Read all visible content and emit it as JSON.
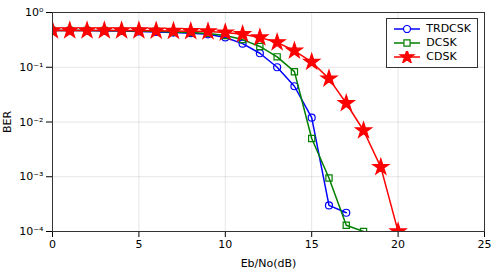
{
  "chart_data": {
    "type": "line",
    "xlabel": "Eb/No(dB)",
    "ylabel": "BER",
    "xlim": [
      0,
      25
    ],
    "xticks": [
      0,
      5,
      10,
      15,
      20,
      25
    ],
    "ylim": [
      0.0001,
      1
    ],
    "yticks": [
      {
        "value": 0.0001,
        "label": "10⁻⁴"
      },
      {
        "value": 0.001,
        "label": "10⁻³"
      },
      {
        "value": 0.01,
        "label": "10⁻²"
      },
      {
        "value": 0.1,
        "label": "10⁻¹"
      },
      {
        "value": 1,
        "label": "10⁰"
      }
    ],
    "log": "y",
    "grid": true,
    "legend": "upper right",
    "series": [
      {
        "name": "TRDCSK",
        "color": "#0000FF",
        "marker": "circle",
        "x": [
          0,
          1,
          2,
          3,
          4,
          5,
          6,
          7,
          8,
          9,
          10,
          11,
          12,
          13,
          14,
          15,
          16,
          17
        ],
        "values": [
          0.47,
          0.47,
          0.47,
          0.46,
          0.46,
          0.45,
          0.44,
          0.43,
          0.42,
          0.4,
          0.35,
          0.27,
          0.18,
          0.1,
          0.045,
          0.012,
          0.0003,
          0.00022
        ]
      },
      {
        "name": "DCSK",
        "color": "#008000",
        "marker": "square",
        "x": [
          0,
          1,
          2,
          3,
          4,
          5,
          6,
          7,
          8,
          9,
          10,
          11,
          12,
          13,
          14,
          15,
          16,
          17,
          18
        ],
        "values": [
          0.47,
          0.47,
          0.47,
          0.47,
          0.465,
          0.46,
          0.455,
          0.44,
          0.43,
          0.415,
          0.38,
          0.32,
          0.24,
          0.155,
          0.083,
          0.005,
          0.00095,
          0.00013,
          0.0001
        ]
      },
      {
        "name": "CDSK",
        "color": "#FF0000",
        "marker": "star",
        "x": [
          0,
          1,
          2,
          3,
          4,
          5,
          6,
          7,
          8,
          9,
          10,
          11,
          12,
          13,
          14,
          15,
          16,
          17,
          18,
          19,
          20
        ],
        "values": [
          0.47,
          0.47,
          0.47,
          0.47,
          0.47,
          0.47,
          0.465,
          0.46,
          0.455,
          0.45,
          0.43,
          0.4,
          0.35,
          0.285,
          0.2,
          0.125,
          0.062,
          0.022,
          0.007,
          0.0015,
          0.0001
        ]
      }
    ]
  }
}
